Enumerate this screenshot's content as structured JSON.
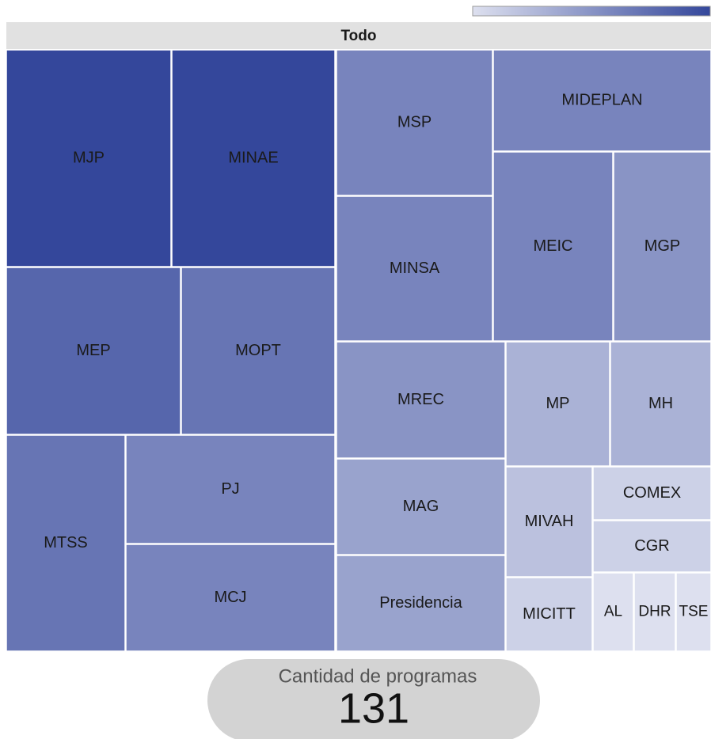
{
  "chart_data": {
    "type": "treemap",
    "root": "Todo",
    "categories": [
      "MJP",
      "MINAE",
      "MEP",
      "MOPT",
      "MTSS",
      "PJ",
      "MCJ",
      "MSP",
      "MIDEPLAN",
      "MINSA",
      "MEIC",
      "MGP",
      "MREC",
      "MAG",
      "Presidencia",
      "MP",
      "MH",
      "MIVAH",
      "MICITT",
      "COMEX",
      "CGR",
      "AL",
      "DHR",
      "TSE"
    ],
    "values": [
      11,
      11,
      9,
      8,
      8,
      7,
      7,
      7,
      7,
      7,
      7,
      6,
      6,
      5,
      5,
      4,
      4,
      3,
      2,
      2,
      2,
      1,
      1,
      1
    ],
    "colorscale": [
      "#dde0ef",
      "#34479b"
    ]
  },
  "summary": {
    "label": "Cantidad de programas",
    "total": 131
  }
}
